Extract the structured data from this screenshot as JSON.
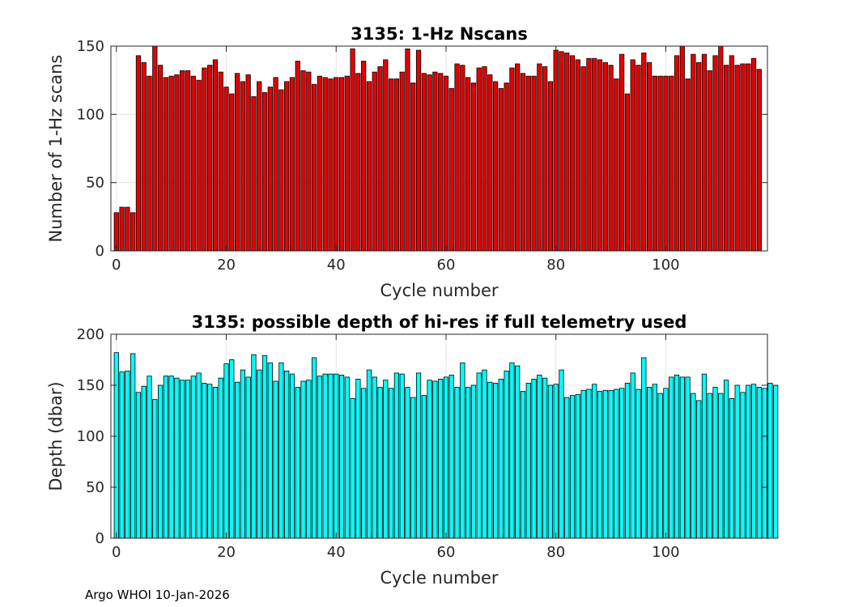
{
  "footer": "Argo WHOI 10-Jan-2026",
  "chart_data": [
    {
      "type": "bar",
      "title": "3135: 1-Hz Nscans",
      "xlabel": "Cycle number",
      "ylabel": "Number of 1-Hz scans",
      "xlim": [
        -1,
        118.5
      ],
      "ylim": [
        0,
        150
      ],
      "xticks": [
        0,
        20,
        40,
        60,
        80,
        100
      ],
      "yticks": [
        0,
        50,
        100,
        150
      ],
      "grid": true,
      "color": "#e50000",
      "x_start": 0,
      "values": [
        28,
        32,
        32,
        28,
        143,
        138,
        128,
        150,
        136,
        127,
        128,
        129,
        132,
        132,
        128,
        125,
        134,
        136,
        140,
        131,
        120,
        115,
        130,
        124,
        129,
        113,
        124,
        116,
        120,
        127,
        118,
        124,
        127,
        139,
        132,
        131,
        122,
        128,
        127,
        126,
        127,
        127,
        128,
        148,
        130,
        139,
        124,
        131,
        135,
        140,
        126,
        126,
        131,
        148,
        123,
        147,
        130,
        129,
        131,
        130,
        128,
        119,
        137,
        136,
        127,
        123,
        134,
        135,
        129,
        124,
        119,
        123,
        134,
        137,
        130,
        128,
        128,
        137,
        135,
        124,
        147,
        146,
        145,
        143,
        140,
        135,
        141,
        141,
        140,
        138,
        136,
        126,
        144,
        115,
        140,
        136,
        145,
        138,
        128,
        128,
        128,
        128,
        143,
        151,
        126,
        144,
        138,
        144,
        132,
        143,
        151,
        136,
        143,
        136,
        137,
        137,
        141,
        133
      ]
    },
    {
      "type": "bar",
      "title": "3135: possible depth of hi-res if full telemetry used",
      "xlabel": "Cycle number",
      "ylabel": "Depth (dbar)",
      "xlim": [
        -1,
        118.5
      ],
      "ylim": [
        0,
        200
      ],
      "xticks": [
        0,
        20,
        40,
        60,
        80,
        100
      ],
      "yticks": [
        0,
        50,
        100,
        150,
        200
      ],
      "grid": true,
      "color": "#00ffff",
      "x_start": 0,
      "values": [
        182,
        163,
        164,
        181,
        143,
        149,
        159,
        136,
        150,
        159,
        159,
        157,
        155,
        155,
        159,
        162,
        152,
        151,
        148,
        157,
        171,
        175,
        153,
        165,
        158,
        180,
        165,
        179,
        172,
        154,
        172,
        164,
        161,
        148,
        154,
        155,
        177,
        159,
        161,
        161,
        161,
        160,
        158,
        137,
        156,
        147,
        165,
        158,
        148,
        155,
        147,
        162,
        161,
        148,
        138,
        162,
        140,
        155,
        154,
        156,
        158,
        160,
        148,
        172,
        148,
        150,
        162,
        165,
        153,
        152,
        156,
        164,
        172,
        169,
        144,
        152,
        156,
        160,
        157,
        150,
        151,
        165,
        138,
        140,
        141,
        145,
        146,
        151,
        144,
        145,
        145,
        146,
        147,
        152,
        162,
        146,
        177,
        148,
        151,
        142,
        147,
        158,
        160,
        158,
        158,
        142,
        135,
        161,
        142,
        148,
        142,
        155,
        137,
        150,
        143,
        150,
        151,
        148,
        147,
        152,
        150
      ]
    }
  ]
}
